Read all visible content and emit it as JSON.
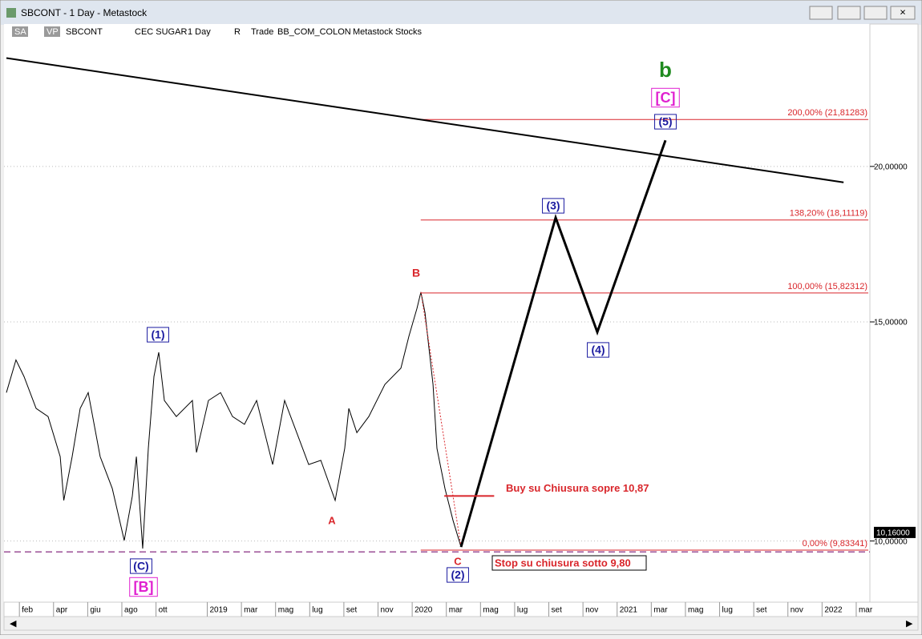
{
  "window": {
    "title": "SBCONT - 1 Day - Metastock"
  },
  "toolbar": {
    "items": [
      "SA",
      "VP",
      "SBCONT",
      "CEC SUGAR",
      "1 Day",
      "R",
      "Trade",
      "BB_COM_COLON",
      "Metastock",
      "Stocks"
    ]
  },
  "chart": {
    "yscale": "log",
    "grid": true,
    "ylim": [
      8.93,
      26.03
    ],
    "xlim": [
      -0.9,
      49.8
    ],
    "yticks": [
      {
        "value": 20,
        "label": "20,00000"
      },
      {
        "value": 15,
        "label": "15,00000"
      },
      {
        "value": 10,
        "label": "10,00000"
      }
    ],
    "xticks": [
      {
        "value": 0,
        "label": "feb"
      },
      {
        "value": 2,
        "label": "apr"
      },
      {
        "value": 4,
        "label": "giu"
      },
      {
        "value": 6,
        "label": "ago"
      },
      {
        "value": 8,
        "label": "ott"
      },
      {
        "value": 11,
        "label": "2019"
      },
      {
        "value": 13,
        "label": "mar"
      },
      {
        "value": 15,
        "label": "mag"
      },
      {
        "value": 17,
        "label": "lug"
      },
      {
        "value": 19,
        "label": "set"
      },
      {
        "value": 21,
        "label": "nov"
      },
      {
        "value": 23,
        "label": "2020"
      },
      {
        "value": 25,
        "label": "mar"
      },
      {
        "value": 27,
        "label": "mag"
      },
      {
        "value": 29,
        "label": "lug"
      },
      {
        "value": 31,
        "label": "set"
      },
      {
        "value": 33,
        "label": "nov"
      },
      {
        "value": 35,
        "label": "2021"
      },
      {
        "value": 37,
        "label": "mar"
      },
      {
        "value": 39,
        "label": "mag"
      },
      {
        "value": 41,
        "label": "lug"
      },
      {
        "value": 43,
        "label": "set"
      },
      {
        "value": 45,
        "label": "nov"
      },
      {
        "value": 47,
        "label": "2022"
      },
      {
        "value": 49,
        "label": "mar"
      }
    ],
    "price": {
      "color": "#000000",
      "x": [
        -0.76,
        -0.2,
        0.27,
        0.98,
        1.68,
        2.39,
        2.6,
        3.09,
        3.56,
        4.03,
        4.73,
        5.44,
        6.14,
        6.61,
        6.85,
        7.22,
        7.55,
        7.88,
        8.16,
        8.49,
        9.19,
        10.13,
        10.37,
        11.07,
        11.78,
        12.48,
        13.18,
        13.89,
        14.83,
        15.53,
        16.24,
        16.94,
        17.65,
        18.49,
        19.05,
        19.29,
        19.76,
        20.46,
        21.4,
        22.34,
        22.81,
        23.28,
        23.51,
        23.75,
        24.22,
        24.45,
        24.92,
        25.39,
        25.86
      ],
      "values": [
        13.16,
        13.98,
        13.56,
        12.78,
        12.59,
        11.69,
        10.78,
        11.69,
        12.78,
        13.16,
        11.69,
        11.02,
        10.01,
        10.86,
        11.69,
        9.86,
        11.87,
        13.56,
        14.18,
        12.97,
        12.59,
        12.97,
        11.78,
        12.97,
        13.16,
        12.59,
        12.41,
        12.97,
        11.52,
        12.97,
        12.22,
        11.52,
        11.61,
        10.78,
        11.87,
        12.78,
        12.22,
        12.59,
        13.36,
        13.77,
        14.61,
        15.38,
        15.85,
        15.26,
        13.36,
        11.87,
        11.02,
        10.39,
        9.89
      ]
    },
    "projection": {
      "color": "#000000",
      "x": [
        25.86,
        31.4,
        33.84,
        37.83
      ],
      "values": [
        9.89,
        18.19,
        14.72,
        20.99
      ]
    },
    "trendline": {
      "color": "#000000",
      "x": [
        -0.76,
        48.26
      ],
      "values": [
        24.44,
        19.42
      ]
    },
    "fib": {
      "color": "#d9262b",
      "start": 23.5,
      "levels": [
        {
          "value": 21.81283,
          "label": "200,00% (21,81283)"
        },
        {
          "value": 18.11119,
          "label": "138,20% (18,11119)"
        },
        {
          "value": 15.82312,
          "label": "100,00% (15,82312)"
        },
        {
          "value": 9.83341,
          "label": "0,00% (9,83341)"
        }
      ]
    },
    "last_price": {
      "value": 10.16,
      "label": "10,16000"
    },
    "buy": {
      "text": "Buy su Chiusura sopre 10,87",
      "value": 10.87,
      "x": [
        24.88,
        27.8
      ],
      "color": "#d9262b"
    },
    "stop": {
      "text": "Stop su chiusura sotto 9,80",
      "value": 9.8,
      "color": "#9b4f96"
    },
    "waves": [
      {
        "text": "b",
        "color": "#1f8a1f"
      },
      {
        "text": "[C]",
        "color": "#e020d0"
      },
      {
        "text": "(5)",
        "color": "#1a1aa0"
      },
      {
        "text": "(3)",
        "color": "#1a1aa0"
      },
      {
        "text": "(4)",
        "color": "#1a1aa0"
      },
      {
        "text": "B",
        "color": "#d9262b"
      },
      {
        "text": "A",
        "color": "#d9262b"
      },
      {
        "text": "C",
        "color": "#d9262b"
      },
      {
        "text": "(2)",
        "color": "#1a1aa0"
      },
      {
        "text": "(1)",
        "color": "#1a1aa0"
      },
      {
        "text": "(C)",
        "color": "#1a1aa0"
      },
      {
        "text": "[B]",
        "color": "#e020d0"
      }
    ]
  }
}
